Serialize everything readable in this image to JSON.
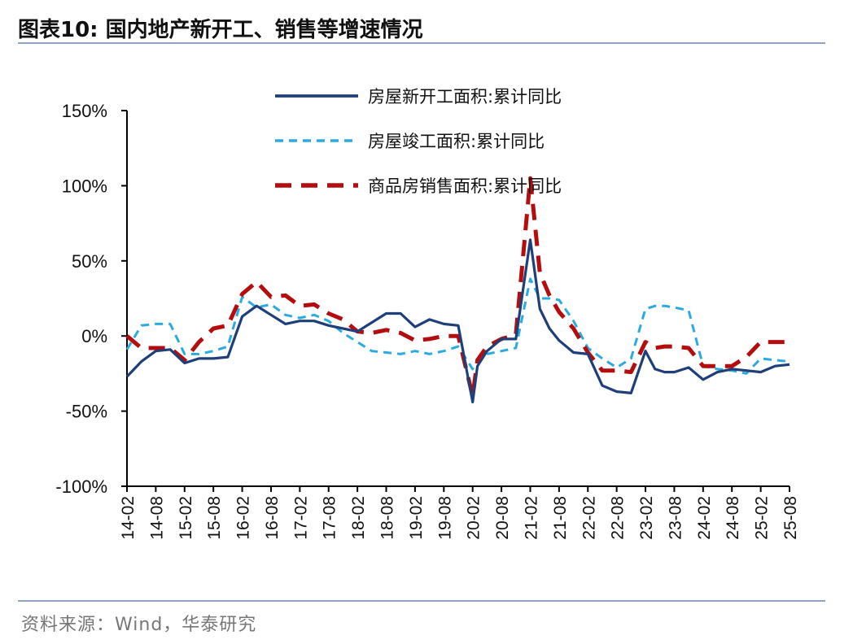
{
  "figure": {
    "title": "图表10:   国内地产新开工、销售等增速情况",
    "source": "资料来源：Wind，华泰研究"
  },
  "chart_data": {
    "type": "line",
    "title": "",
    "xlabel": "",
    "ylabel": "",
    "ylim": [
      -100,
      150
    ],
    "yticks": [
      150,
      100,
      50,
      0,
      -50,
      -100
    ],
    "ytick_labels": [
      "150%",
      "100%",
      "50%",
      "0%",
      "-50%",
      "-100%"
    ],
    "xtick_labels": [
      "14-02",
      "14-08",
      "15-02",
      "15-08",
      "16-02",
      "16-08",
      "17-02",
      "17-08",
      "18-02",
      "18-08",
      "19-02",
      "19-08",
      "20-02",
      "20-08",
      "21-02",
      "21-08",
      "22-02",
      "22-08",
      "23-02",
      "23-08",
      "24-02",
      "24-08",
      "25-02",
      "25-08"
    ],
    "legend_position": "top-center",
    "grid": false,
    "series": [
      {
        "name": "房屋新开工面积:累计同比",
        "color": "#1f3f7a",
        "dash": "solid",
        "x": [
          "14-02",
          "14-05",
          "14-08",
          "14-11",
          "15-02",
          "15-05",
          "15-08",
          "15-11",
          "16-02",
          "16-05",
          "16-08",
          "16-11",
          "17-02",
          "17-05",
          "17-08",
          "17-11",
          "18-02",
          "18-05",
          "18-08",
          "18-11",
          "19-02",
          "19-05",
          "19-08",
          "19-11",
          "20-02",
          "20-03",
          "20-05",
          "20-08",
          "20-11",
          "21-02",
          "21-04",
          "21-06",
          "21-08",
          "21-11",
          "22-02",
          "22-05",
          "22-08",
          "22-11",
          "23-02",
          "23-04",
          "23-06",
          "23-08",
          "23-11",
          "24-02",
          "24-05",
          "24-08",
          "24-11",
          "25-02",
          "25-05",
          "25-08"
        ],
        "values": [
          -27,
          -17,
          -10,
          -9,
          -18,
          -15,
          -15,
          -14,
          13,
          20,
          14,
          8,
          10,
          10,
          7,
          5,
          3,
          9,
          15,
          15,
          6,
          11,
          8,
          7,
          -44,
          -20,
          -10,
          -2,
          -2,
          64,
          18,
          5,
          -3,
          -11,
          -12,
          -33,
          -37,
          -38,
          -10,
          -22,
          -24,
          -24,
          -21,
          -29,
          -24,
          -22,
          -23,
          -24,
          -20,
          -19
        ]
      },
      {
        "name": "房屋竣工面积:累计同比",
        "color": "#29abe2",
        "dash": "dashed",
        "x": [
          "14-02",
          "14-05",
          "14-08",
          "14-11",
          "15-02",
          "15-05",
          "15-08",
          "15-11",
          "16-02",
          "16-05",
          "16-08",
          "16-11",
          "17-02",
          "17-05",
          "17-08",
          "17-11",
          "18-02",
          "18-05",
          "18-08",
          "18-11",
          "19-02",
          "19-05",
          "19-08",
          "19-11",
          "20-02",
          "20-03",
          "20-05",
          "20-08",
          "20-11",
          "21-02",
          "21-04",
          "21-06",
          "21-08",
          "21-11",
          "22-02",
          "22-05",
          "22-08",
          "22-11",
          "23-02",
          "23-04",
          "23-06",
          "23-08",
          "23-11",
          "24-02",
          "24-05",
          "24-08",
          "24-11",
          "25-02",
          "25-05",
          "25-08"
        ],
        "values": [
          -9,
          7,
          8,
          8,
          -12,
          -12,
          -10,
          -7,
          26,
          19,
          21,
          14,
          12,
          14,
          10,
          2,
          -4,
          -10,
          -11,
          -12,
          -10,
          -12,
          -10,
          -7,
          -22,
          -16,
          -12,
          -10,
          -8,
          38,
          25,
          25,
          24,
          10,
          -8,
          -15,
          -21,
          -15,
          18,
          20,
          20,
          19,
          17,
          -20,
          -22,
          -23,
          -25,
          -15,
          -16,
          -17
        ]
      },
      {
        "name": "商品房销售面积:累计同比",
        "color": "#b50d0d",
        "dash": "longdash",
        "x": [
          "14-02",
          "14-05",
          "14-08",
          "14-11",
          "15-02",
          "15-05",
          "15-08",
          "15-11",
          "16-02",
          "16-05",
          "16-08",
          "16-11",
          "17-02",
          "17-05",
          "17-08",
          "17-11",
          "18-02",
          "18-05",
          "18-08",
          "18-11",
          "19-02",
          "19-05",
          "19-08",
          "19-11",
          "20-02",
          "20-03",
          "20-05",
          "20-08",
          "20-11",
          "21-02",
          "21-04",
          "21-06",
          "21-08",
          "21-11",
          "22-02",
          "22-05",
          "22-08",
          "22-11",
          "23-02",
          "23-04",
          "23-06",
          "23-08",
          "23-11",
          "24-02",
          "24-05",
          "24-08",
          "24-11",
          "25-02",
          "25-05",
          "25-08"
        ],
        "values": [
          0,
          -8,
          -8,
          -8,
          -16,
          -4,
          5,
          7,
          28,
          36,
          26,
          27,
          20,
          21,
          15,
          11,
          3,
          2,
          4,
          2,
          -3,
          -2,
          0,
          0,
          -40,
          -16,
          -7,
          -2,
          1,
          105,
          42,
          27,
          16,
          5,
          -11,
          -23,
          -23,
          -24,
          -4,
          -8,
          -7,
          -7,
          -8,
          -20,
          -20,
          -20,
          -14,
          -4,
          -4,
          -4
        ]
      }
    ]
  }
}
